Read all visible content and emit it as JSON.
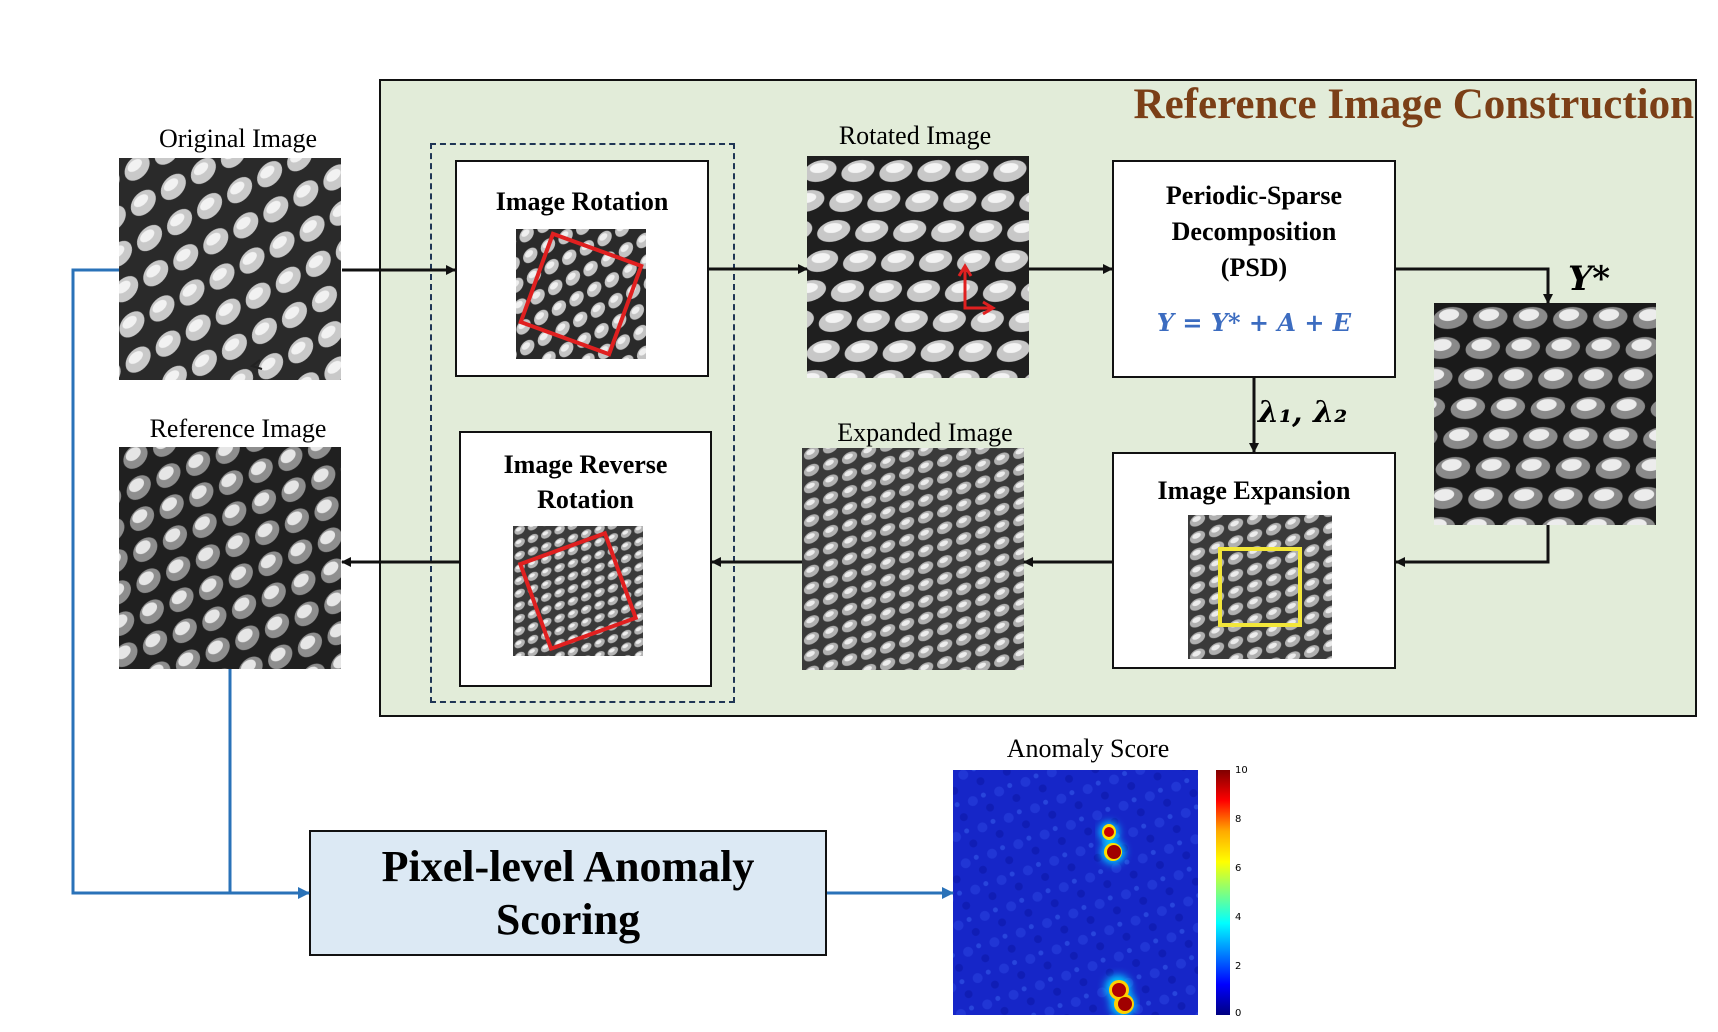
{
  "panel": {
    "title": "Reference Image Construction"
  },
  "labels": {
    "original": "Original Image",
    "reference": "Reference Image",
    "rotated": "Rotated Image",
    "expanded": "Expanded Image",
    "anomaly": "Anomaly Score"
  },
  "boxes": {
    "rotation": "Image Rotation",
    "reverse_rotation_1": "Image Reverse",
    "reverse_rotation_2": "Rotation",
    "psd_1": "Periodic-Sparse",
    "psd_2": "Decomposition",
    "psd_3": "(PSD)",
    "psd_equation": "Y  = Y* + A + E",
    "expansion": "Image Expansion",
    "scoring_1": "Pixel-level Anomaly",
    "scoring_2": "Scoring"
  },
  "symbols": {
    "lambda": "λ₁, λ₂",
    "ystar": "Y*"
  },
  "colorbar": {
    "ticks": [
      "10",
      "8",
      "6",
      "4",
      "2",
      "0"
    ]
  },
  "colors": {
    "panel_bg": "#e2ecd9",
    "title": "#7b3f17",
    "flow_blue": "#2a72b8",
    "rotation_frame": "#e02020",
    "expansion_frame": "#f2e63a",
    "score_box": "#dce9f4"
  }
}
